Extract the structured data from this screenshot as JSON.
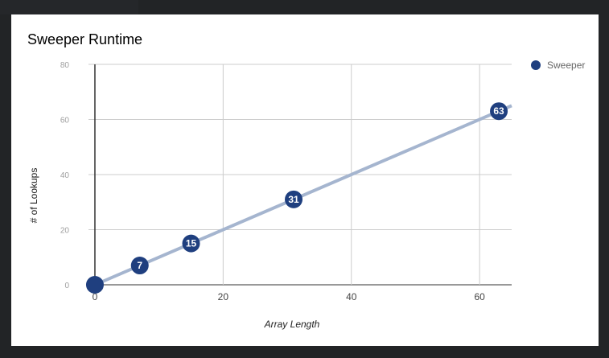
{
  "chart_data": {
    "type": "scatter",
    "title": "Sweeper Runtime",
    "xlabel": "Array Length",
    "ylabel": "# of Lookups",
    "xlim": [
      -1,
      65
    ],
    "ylim": [
      0,
      80
    ],
    "x_ticks": [
      0,
      20,
      40,
      60
    ],
    "y_ticks": [
      0,
      20,
      40,
      60,
      80
    ],
    "grid": true,
    "legend_position": "right",
    "series": [
      {
        "name": "Sweeper",
        "color": "#1f3f7f",
        "points": [
          {
            "x": 0,
            "y": 0,
            "label": ""
          },
          {
            "x": 7,
            "y": 7,
            "label": "7"
          },
          {
            "x": 15,
            "y": 15,
            "label": "15"
          },
          {
            "x": 31,
            "y": 31,
            "label": "31"
          },
          {
            "x": 63,
            "y": 63,
            "label": "63"
          }
        ]
      }
    ],
    "trendline": {
      "color": "#a5b5cf",
      "slope": 1,
      "intercept": 0
    }
  }
}
